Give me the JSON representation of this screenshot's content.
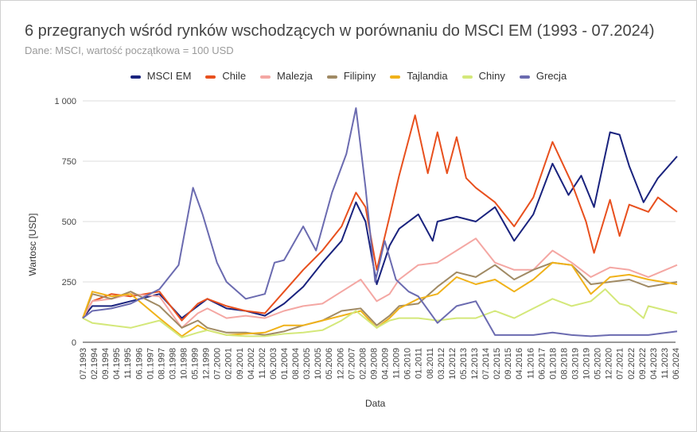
{
  "chart_data": {
    "type": "line",
    "title": "6 przegranych wśród rynków wschodzących w porównaniu do MSCI EM (1993 - 07.2024)",
    "subtitle": "Dane: MSCI, wartość początkowa = 100 USD",
    "xlabel": "Data",
    "ylabel": "Wartosc [USD]",
    "ylim": [
      0,
      1000
    ],
    "yticks": [
      "0",
      "250",
      "500",
      "750",
      "1 000"
    ],
    "ytick_values": [
      0,
      250,
      500,
      750,
      1000
    ],
    "grid": true,
    "legend": "top",
    "xticks": [
      "07.1993",
      "02.1994",
      "09.1994",
      "04.1995",
      "11.1995",
      "06.1996",
      "01.1997",
      "08.1997",
      "03.1998",
      "10.1998",
      "05.1999",
      "12.1999",
      "07.2000",
      "02.2001",
      "09.2001",
      "04.2002",
      "11.2002",
      "06.2003",
      "01.2004",
      "08.2004",
      "03.2005",
      "10.2005",
      "05.2006",
      "12.2006",
      "07.2007",
      "02.2008",
      "09.2008",
      "04.2009",
      "11.2009",
      "06.2010",
      "01.2011",
      "08.2011",
      "03.2012",
      "10.2012",
      "05.2013",
      "12.2013",
      "07.2014",
      "02.2015",
      "09.2015",
      "04.2016",
      "11.2016",
      "06.2017",
      "01.2018",
      "08.2018",
      "03.2019",
      "10.2019",
      "05.2020",
      "12.2020",
      "07.2021",
      "02.2022",
      "09.2022",
      "04.2023",
      "11.2023",
      "06.2024"
    ],
    "series": [
      {
        "name": "MSCI EM",
        "color": "#1a237e",
        "points": [
          [
            "1993-07",
            100
          ],
          [
            "1994-01",
            150
          ],
          [
            "1995-01",
            150
          ],
          [
            "1996-01",
            170
          ],
          [
            "1997-07",
            200
          ],
          [
            "1998-09",
            100
          ],
          [
            "1999-01",
            120
          ],
          [
            "2000-01",
            180
          ],
          [
            "2001-01",
            140
          ],
          [
            "2002-01",
            130
          ],
          [
            "2003-01",
            110
          ],
          [
            "2004-01",
            160
          ],
          [
            "2005-01",
            230
          ],
          [
            "2006-01",
            330
          ],
          [
            "2007-01",
            420
          ],
          [
            "2007-10",
            580
          ],
          [
            "2008-04",
            500
          ],
          [
            "2008-11",
            240
          ],
          [
            "2009-07",
            400
          ],
          [
            "2010-01",
            470
          ],
          [
            "2011-01",
            530
          ],
          [
            "2011-10",
            420
          ],
          [
            "2012-01",
            500
          ],
          [
            "2013-01",
            520
          ],
          [
            "2014-01",
            500
          ],
          [
            "2015-01",
            560
          ],
          [
            "2016-01",
            420
          ],
          [
            "2017-01",
            530
          ],
          [
            "2018-01",
            740
          ],
          [
            "2018-11",
            610
          ],
          [
            "2019-07",
            690
          ],
          [
            "2020-03",
            560
          ],
          [
            "2021-01",
            870
          ],
          [
            "2021-07",
            860
          ],
          [
            "2022-01",
            730
          ],
          [
            "2022-10",
            580
          ],
          [
            "2023-07",
            680
          ],
          [
            "2024-07",
            770
          ]
        ]
      },
      {
        "name": "Chile",
        "color": "#e8501e",
        "points": [
          [
            "1993-07",
            100
          ],
          [
            "1994-01",
            170
          ],
          [
            "1995-01",
            200
          ],
          [
            "1996-01",
            190
          ],
          [
            "1997-07",
            210
          ],
          [
            "1998-09",
            90
          ],
          [
            "1999-07",
            160
          ],
          [
            "2000-01",
            180
          ],
          [
            "2001-01",
            150
          ],
          [
            "2002-01",
            130
          ],
          [
            "2003-01",
            120
          ],
          [
            "2004-01",
            210
          ],
          [
            "2005-01",
            300
          ],
          [
            "2006-01",
            380
          ],
          [
            "2007-01",
            480
          ],
          [
            "2007-10",
            620
          ],
          [
            "2008-04",
            560
          ],
          [
            "2008-11",
            300
          ],
          [
            "2009-07",
            520
          ],
          [
            "2010-01",
            690
          ],
          [
            "2010-11",
            940
          ],
          [
            "2011-07",
            700
          ],
          [
            "2012-01",
            870
          ],
          [
            "2012-07",
            700
          ],
          [
            "2013-01",
            850
          ],
          [
            "2013-07",
            680
          ],
          [
            "2014-01",
            640
          ],
          [
            "2015-01",
            580
          ],
          [
            "2016-01",
            480
          ],
          [
            "2017-01",
            600
          ],
          [
            "2018-01",
            830
          ],
          [
            "2019-01",
            660
          ],
          [
            "2019-10",
            500
          ],
          [
            "2020-03",
            370
          ],
          [
            "2021-01",
            590
          ],
          [
            "2021-07",
            440
          ],
          [
            "2022-01",
            570
          ],
          [
            "2023-01",
            540
          ],
          [
            "2023-07",
            600
          ],
          [
            "2024-07",
            540
          ]
        ]
      },
      {
        "name": "Malezja",
        "color": "#f4a7a3",
        "points": [
          [
            "1993-07",
            100
          ],
          [
            "1994-01",
            170
          ],
          [
            "1995-01",
            180
          ],
          [
            "1996-01",
            200
          ],
          [
            "1997-07",
            190
          ],
          [
            "1998-09",
            60
          ],
          [
            "1999-07",
            120
          ],
          [
            "2000-01",
            140
          ],
          [
            "2001-01",
            100
          ],
          [
            "2002-01",
            110
          ],
          [
            "2003-01",
            100
          ],
          [
            "2004-01",
            130
          ],
          [
            "2005-01",
            150
          ],
          [
            "2006-01",
            160
          ],
          [
            "2007-01",
            210
          ],
          [
            "2008-01",
            260
          ],
          [
            "2008-11",
            170
          ],
          [
            "2009-07",
            200
          ],
          [
            "2010-01",
            260
          ],
          [
            "2011-01",
            320
          ],
          [
            "2012-01",
            330
          ],
          [
            "2013-01",
            380
          ],
          [
            "2014-01",
            430
          ],
          [
            "2015-01",
            330
          ],
          [
            "2016-01",
            300
          ],
          [
            "2017-01",
            300
          ],
          [
            "2018-01",
            380
          ],
          [
            "2019-01",
            330
          ],
          [
            "2020-01",
            270
          ],
          [
            "2021-01",
            310
          ],
          [
            "2022-01",
            300
          ],
          [
            "2023-01",
            270
          ],
          [
            "2024-07",
            320
          ]
        ]
      },
      {
        "name": "Filipiny",
        "color": "#a08a64",
        "points": [
          [
            "1993-07",
            100
          ],
          [
            "1994-01",
            200
          ],
          [
            "1995-01",
            180
          ],
          [
            "1996-01",
            210
          ],
          [
            "1997-07",
            150
          ],
          [
            "1998-09",
            60
          ],
          [
            "1999-07",
            90
          ],
          [
            "2000-01",
            60
          ],
          [
            "2001-01",
            40
          ],
          [
            "2002-01",
            40
          ],
          [
            "2003-01",
            30
          ],
          [
            "2004-01",
            45
          ],
          [
            "2005-01",
            70
          ],
          [
            "2006-01",
            90
          ],
          [
            "2007-01",
            130
          ],
          [
            "2008-01",
            140
          ],
          [
            "2008-11",
            70
          ],
          [
            "2009-07",
            110
          ],
          [
            "2010-01",
            150
          ],
          [
            "2011-01",
            160
          ],
          [
            "2012-01",
            230
          ],
          [
            "2013-01",
            290
          ],
          [
            "2014-01",
            270
          ],
          [
            "2015-01",
            320
          ],
          [
            "2016-01",
            260
          ],
          [
            "2017-01",
            300
          ],
          [
            "2018-01",
            330
          ],
          [
            "2019-01",
            320
          ],
          [
            "2020-01",
            240
          ],
          [
            "2021-01",
            250
          ],
          [
            "2022-01",
            260
          ],
          [
            "2023-01",
            230
          ],
          [
            "2024-07",
            250
          ]
        ]
      },
      {
        "name": "Tajlandia",
        "color": "#f0b21a",
        "points": [
          [
            "1993-07",
            100
          ],
          [
            "1994-01",
            210
          ],
          [
            "1995-01",
            190
          ],
          [
            "1996-01",
            200
          ],
          [
            "1997-07",
            100
          ],
          [
            "1998-09",
            25
          ],
          [
            "1999-07",
            70
          ],
          [
            "2000-01",
            50
          ],
          [
            "2001-01",
            30
          ],
          [
            "2002-01",
            35
          ],
          [
            "2003-01",
            40
          ],
          [
            "2004-01",
            70
          ],
          [
            "2005-01",
            70
          ],
          [
            "2006-01",
            90
          ],
          [
            "2007-01",
            110
          ],
          [
            "2008-01",
            130
          ],
          [
            "2008-11",
            60
          ],
          [
            "2009-07",
            100
          ],
          [
            "2010-01",
            140
          ],
          [
            "2011-01",
            180
          ],
          [
            "2012-01",
            200
          ],
          [
            "2013-01",
            270
          ],
          [
            "2014-01",
            240
          ],
          [
            "2015-01",
            260
          ],
          [
            "2016-01",
            210
          ],
          [
            "2017-01",
            260
          ],
          [
            "2018-01",
            330
          ],
          [
            "2019-01",
            320
          ],
          [
            "2020-01",
            200
          ],
          [
            "2021-01",
            270
          ],
          [
            "2022-01",
            280
          ],
          [
            "2023-01",
            260
          ],
          [
            "2024-07",
            240
          ]
        ]
      },
      {
        "name": "Chiny",
        "color": "#d4e87a",
        "points": [
          [
            "1993-07",
            100
          ],
          [
            "1994-01",
            80
          ],
          [
            "1995-01",
            70
          ],
          [
            "1996-01",
            60
          ],
          [
            "1997-07",
            90
          ],
          [
            "1998-09",
            20
          ],
          [
            "1999-07",
            40
          ],
          [
            "2000-01",
            50
          ],
          [
            "2001-01",
            30
          ],
          [
            "2002-01",
            25
          ],
          [
            "2003-01",
            25
          ],
          [
            "2004-01",
            35
          ],
          [
            "2005-01",
            40
          ],
          [
            "2006-01",
            50
          ],
          [
            "2007-01",
            90
          ],
          [
            "2007-10",
            130
          ],
          [
            "2008-11",
            60
          ],
          [
            "2009-07",
            90
          ],
          [
            "2010-01",
            100
          ],
          [
            "2011-01",
            100
          ],
          [
            "2012-01",
            90
          ],
          [
            "2013-01",
            100
          ],
          [
            "2014-01",
            100
          ],
          [
            "2015-01",
            130
          ],
          [
            "2016-01",
            100
          ],
          [
            "2017-01",
            140
          ],
          [
            "2018-01",
            180
          ],
          [
            "2019-01",
            150
          ],
          [
            "2020-01",
            170
          ],
          [
            "2020-10",
            220
          ],
          [
            "2021-07",
            160
          ],
          [
            "2022-01",
            150
          ],
          [
            "2022-10",
            100
          ],
          [
            "2023-01",
            150
          ],
          [
            "2024-07",
            120
          ]
        ]
      },
      {
        "name": "Grecja",
        "color": "#6b6bb0",
        "points": [
          [
            "1993-07",
            100
          ],
          [
            "1994-01",
            130
          ],
          [
            "1995-01",
            140
          ],
          [
            "1996-01",
            160
          ],
          [
            "1997-07",
            220
          ],
          [
            "1998-07",
            320
          ],
          [
            "1999-04",
            640
          ],
          [
            "1999-10",
            530
          ],
          [
            "2000-07",
            330
          ],
          [
            "2001-01",
            250
          ],
          [
            "2002-01",
            180
          ],
          [
            "2003-01",
            200
          ],
          [
            "2003-07",
            330
          ],
          [
            "2004-01",
            340
          ],
          [
            "2005-01",
            480
          ],
          [
            "2005-09",
            380
          ],
          [
            "2006-07",
            620
          ],
          [
            "2007-04",
            780
          ],
          [
            "2007-10",
            970
          ],
          [
            "2008-04",
            640
          ],
          [
            "2008-10",
            250
          ],
          [
            "2009-04",
            420
          ],
          [
            "2009-11",
            260
          ],
          [
            "2010-07",
            210
          ],
          [
            "2011-01",
            190
          ],
          [
            "2012-01",
            80
          ],
          [
            "2013-01",
            150
          ],
          [
            "2014-01",
            170
          ],
          [
            "2015-01",
            30
          ],
          [
            "2016-01",
            30
          ],
          [
            "2017-01",
            30
          ],
          [
            "2018-01",
            40
          ],
          [
            "2019-01",
            30
          ],
          [
            "2020-01",
            25
          ],
          [
            "2021-01",
            30
          ],
          [
            "2022-01",
            30
          ],
          [
            "2023-01",
            30
          ],
          [
            "2024-07",
            45
          ]
        ]
      }
    ]
  }
}
